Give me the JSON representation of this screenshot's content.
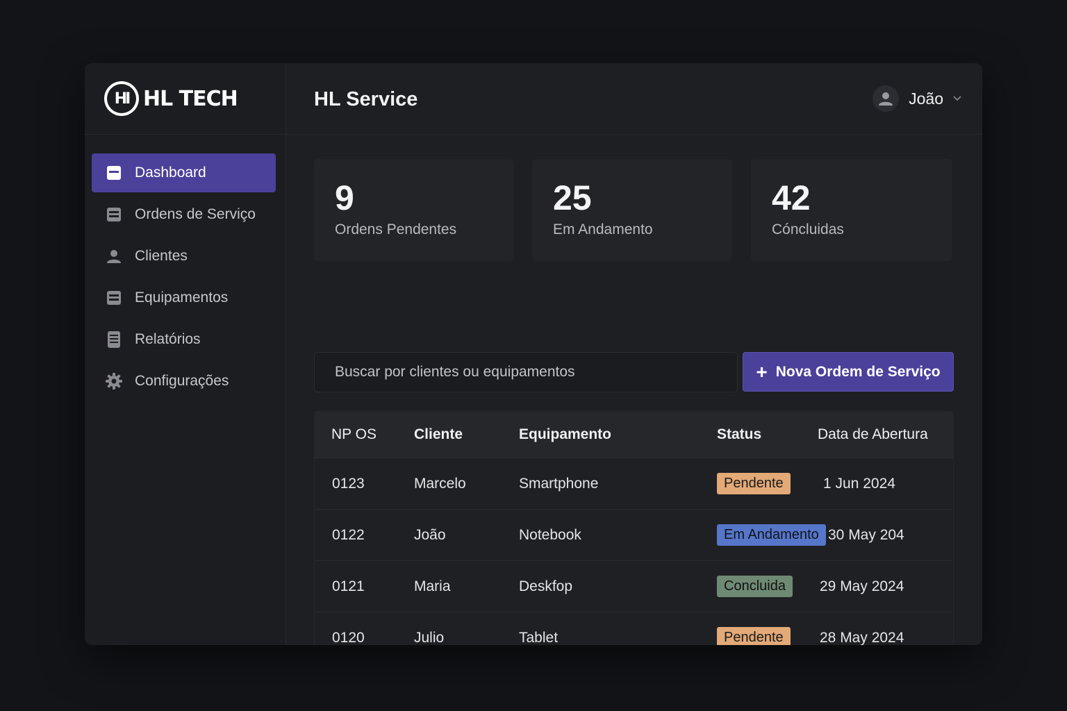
{
  "brand": {
    "logo_text": "HI",
    "name": "HL TECH"
  },
  "header": {
    "title": "HL Service",
    "user_name": "João"
  },
  "sidebar": {
    "items": [
      {
        "label": "Dashboard",
        "icon": "dashboard-icon",
        "active": true
      },
      {
        "label": "Ordens de Serviço",
        "icon": "list-icon",
        "active": false
      },
      {
        "label": "Clientes",
        "icon": "user-icon",
        "active": false
      },
      {
        "label": "Equipamentos",
        "icon": "list-icon",
        "active": false
      },
      {
        "label": "Relatórios",
        "icon": "report-icon",
        "active": false
      },
      {
        "label": "Configurações",
        "icon": "gear-icon",
        "active": false
      }
    ]
  },
  "stats": [
    {
      "value": "9",
      "label": "Ordens Pendentes"
    },
    {
      "value": "25",
      "label": "Em Andamento"
    },
    {
      "value": "42",
      "label": "Cóncluidas"
    }
  ],
  "search": {
    "placeholder": "Buscar por clientes ou equipamentos"
  },
  "actions": {
    "new_order_label": "Nova Ordem de Serviço"
  },
  "table": {
    "columns": [
      "NP OS",
      "Cliente",
      "Equipamento",
      "Status",
      "Data de Abertura"
    ],
    "rows": [
      {
        "os": "0123",
        "cliente": "Marcelo",
        "equipamento": "Smartphone",
        "status": "Pendente",
        "data": "1 Jun 2024"
      },
      {
        "os": "0122",
        "cliente": "João",
        "equipamento": "Notebook",
        "status": "Em Andamento",
        "data": "30 May 204"
      },
      {
        "os": "0121",
        "cliente": "Maria",
        "equipamento": "Deskfop",
        "status": "Concluida",
        "data": "29 May 2024"
      },
      {
        "os": "0120",
        "cliente": "Julio",
        "equipamento": "Tablet",
        "status": "Pendente",
        "data": "28 May 2024"
      }
    ]
  },
  "colors": {
    "accent": "#4b419a",
    "pendente": "#e3a977",
    "andamento": "#5576c9",
    "concluida": "#6f8a74"
  }
}
